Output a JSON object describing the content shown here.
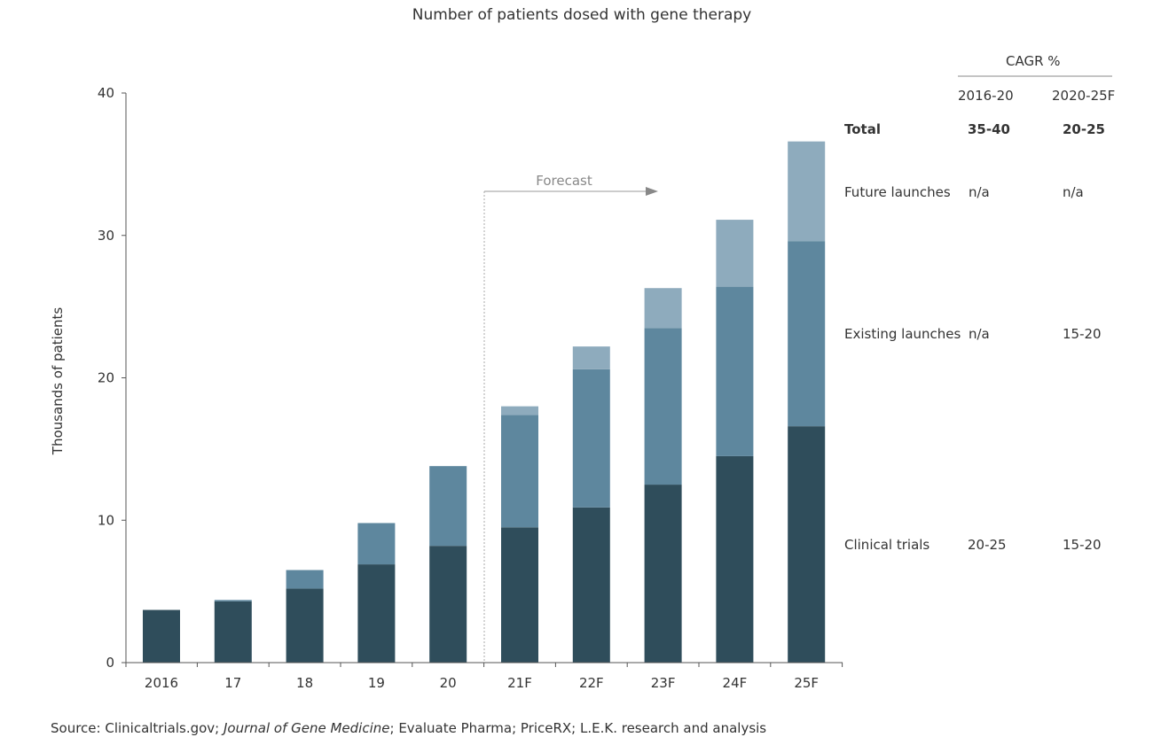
{
  "chart_data": {
    "type": "bar",
    "stacked": true,
    "title": "Number of patients dosed with gene therapy",
    "ylabel": "Thousands of patients",
    "xlabel": "",
    "ylim": [
      0,
      40
    ],
    "yticks": [
      0,
      10,
      20,
      30,
      40
    ],
    "categories": [
      "2016",
      "17",
      "18",
      "19",
      "20",
      "21F",
      "22F",
      "23F",
      "24F",
      "25F"
    ],
    "series": [
      {
        "name": "Clinical trials",
        "color": "#2f4d5b",
        "values": [
          3.7,
          4.3,
          5.2,
          6.9,
          8.2,
          9.5,
          10.9,
          12.5,
          14.5,
          16.6
        ]
      },
      {
        "name": "Existing launches",
        "color": "#5e879e",
        "values": [
          0,
          0.1,
          1.3,
          2.9,
          5.6,
          7.9,
          9.7,
          11.0,
          11.9,
          13.0
        ]
      },
      {
        "name": "Future launches",
        "color": "#8eabbd",
        "values": [
          0,
          0,
          0,
          0,
          0,
          0.6,
          1.6,
          2.8,
          4.7,
          7.0
        ]
      }
    ],
    "forecast_label": "Forecast",
    "forecast_start": "21F",
    "grid": false,
    "legend": "right, as table labels"
  },
  "cagr_table": {
    "header": "CAGR %",
    "columns": [
      "2016-20",
      "2020-25F"
    ],
    "rows": [
      {
        "label": "Total",
        "bold": true,
        "values": [
          "35-40",
          "20-25"
        ]
      },
      {
        "label": "Future launches",
        "values": [
          "n/a",
          "n/a"
        ]
      },
      {
        "label": "Existing launches",
        "values": [
          "n/a",
          "15-20"
        ]
      },
      {
        "label": "Clinical trials",
        "values": [
          "20-25",
          "15-20"
        ]
      }
    ]
  },
  "source": {
    "prefix": "Source: Clinicaltrials.gov; ",
    "italic": "Journal of Gene Medicine",
    "suffix": "; Evaluate Pharma; PriceRX; L.E.K. research and analysis"
  }
}
